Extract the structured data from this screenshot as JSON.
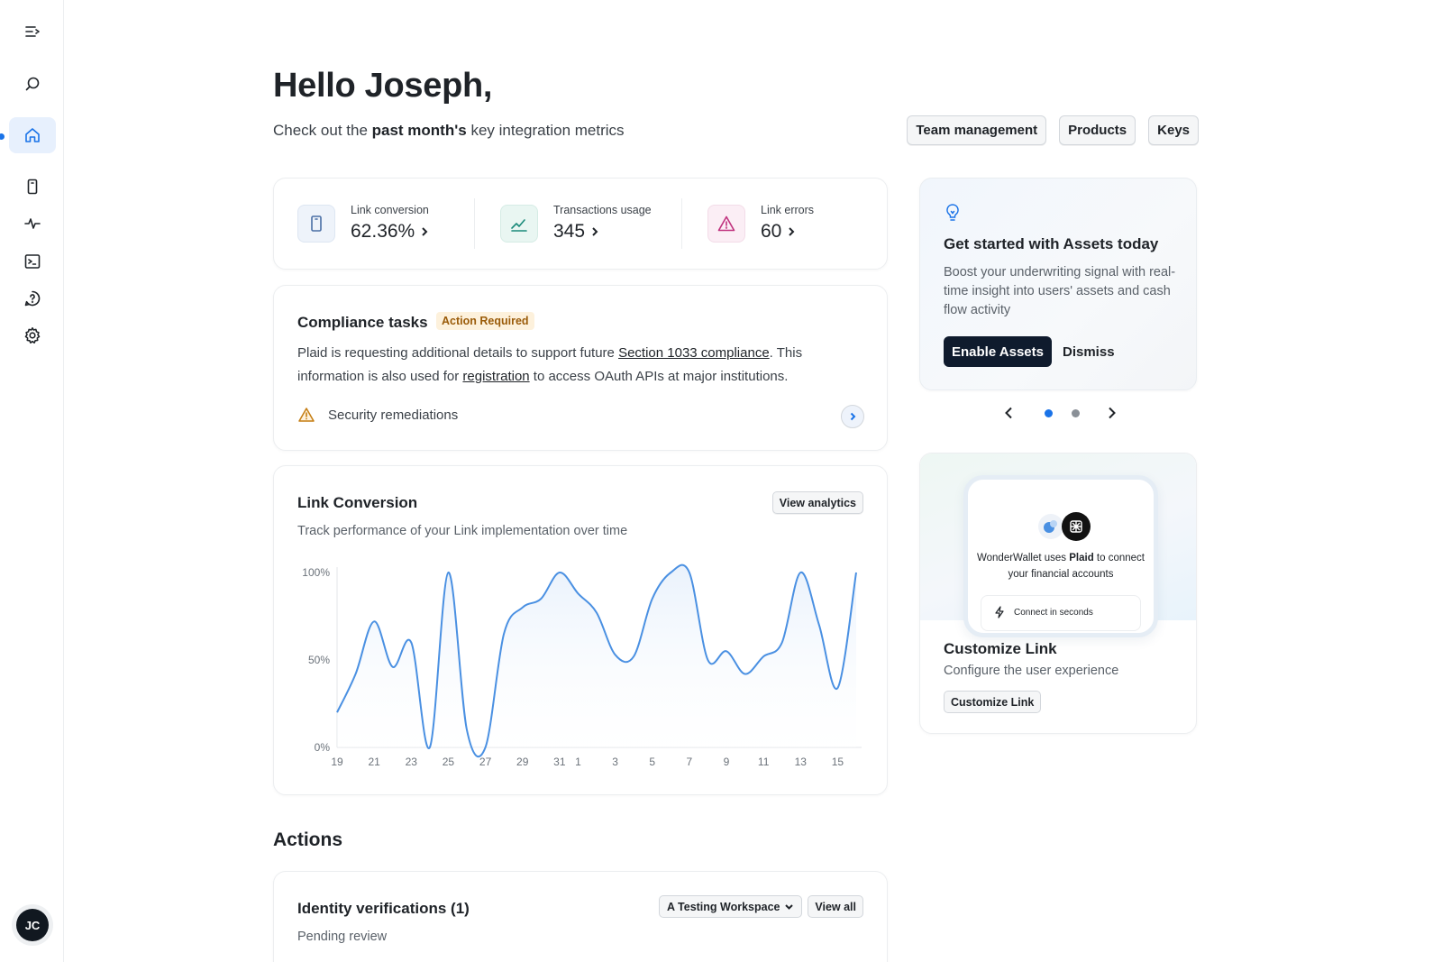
{
  "header": {
    "greeting": "Hello Joseph,",
    "subtitle_pre": "Check out the ",
    "subtitle_bold": "past month's",
    "subtitle_post": " key integration metrics",
    "buttons": [
      "Team management",
      "Products",
      "Keys"
    ]
  },
  "sidebar": {
    "items": [
      {
        "name": "menu-collapse",
        "icon": "collapse-icon"
      },
      {
        "name": "search",
        "icon": "search-icon"
      },
      {
        "name": "home",
        "icon": "home-icon",
        "active": true
      },
      {
        "name": "phone",
        "icon": "phone-icon"
      },
      {
        "name": "activity",
        "icon": "activity-icon"
      },
      {
        "name": "terminal",
        "icon": "terminal-icon"
      },
      {
        "name": "help",
        "icon": "help-icon"
      },
      {
        "name": "settings",
        "icon": "gear-icon"
      }
    ],
    "avatar": "JC"
  },
  "metrics": [
    {
      "label": "Link conversion",
      "value": "62.36%",
      "icon": "phone-icon",
      "color": "#4a6fa5"
    },
    {
      "label": "Transactions usage",
      "value": "345",
      "icon": "chart-line-icon",
      "color": "#1a8a7a"
    },
    {
      "label": "Link errors",
      "value": "60",
      "icon": "warning-icon",
      "color": "#c0327e"
    }
  ],
  "compliance": {
    "title": "Compliance tasks",
    "badge": "Action Required",
    "text_1": "Plaid is requesting additional details to support future ",
    "link_1": "Section 1033 compliance",
    "text_2": ". This information is also used for ",
    "link_2": "registration",
    "text_3": " to access OAuth APIs at major institutions.",
    "task": "Security remediations"
  },
  "link_conversion": {
    "title": "Link Conversion",
    "subtitle": "Track performance of your Link implementation over time",
    "button": "View analytics"
  },
  "chart_data": {
    "type": "area",
    "x": [
      "19",
      "20",
      "21",
      "22",
      "23",
      "24",
      "25",
      "26",
      "27",
      "28",
      "29",
      "30",
      "31",
      "1",
      "2",
      "3",
      "4",
      "5",
      "6",
      "7",
      "8",
      "9",
      "10",
      "11",
      "12",
      "13",
      "14",
      "15",
      "16"
    ],
    "series": [
      {
        "values": [
          20,
          42,
          72,
          46,
          60,
          0,
          100,
          10,
          0,
          65,
          80,
          85,
          100,
          88,
          77,
          53,
          52,
          85,
          100,
          100,
          50,
          55,
          42,
          52,
          60,
          100,
          70,
          34,
          100
        ]
      }
    ],
    "xticks": [
      "19",
      "21",
      "23",
      "25",
      "27",
      "29",
      "31",
      "1",
      "3",
      "5",
      "7",
      "9",
      "11",
      "13",
      "15"
    ],
    "yticks": [
      "0%",
      "50%",
      "100%"
    ],
    "ylim": [
      0,
      100
    ],
    "colors": {
      "line": "#4a90e2",
      "fill": "#eaf2fc"
    }
  },
  "actions": {
    "title": "Actions",
    "identity_title": "Identity verifications (1)",
    "identity_sub": "Pending review",
    "workspace": "A Testing Workspace",
    "view_all": "View all"
  },
  "promo": {
    "title": "Get started with Assets today",
    "text": "Boost your underwriting signal with real-time insight into users' assets and cash flow activity",
    "primary": "Enable Assets",
    "secondary": "Dismiss",
    "carousel": {
      "pages": 2,
      "active": 1
    }
  },
  "customize": {
    "phone_text_pre": "WonderWallet uses ",
    "phone_text_bold": "Plaid",
    "phone_text_post": " to connect your financial accounts",
    "phone_pill": "Connect in seconds",
    "title": "Customize Link",
    "subtitle": "Configure the user experience",
    "button": "Customize Link"
  }
}
